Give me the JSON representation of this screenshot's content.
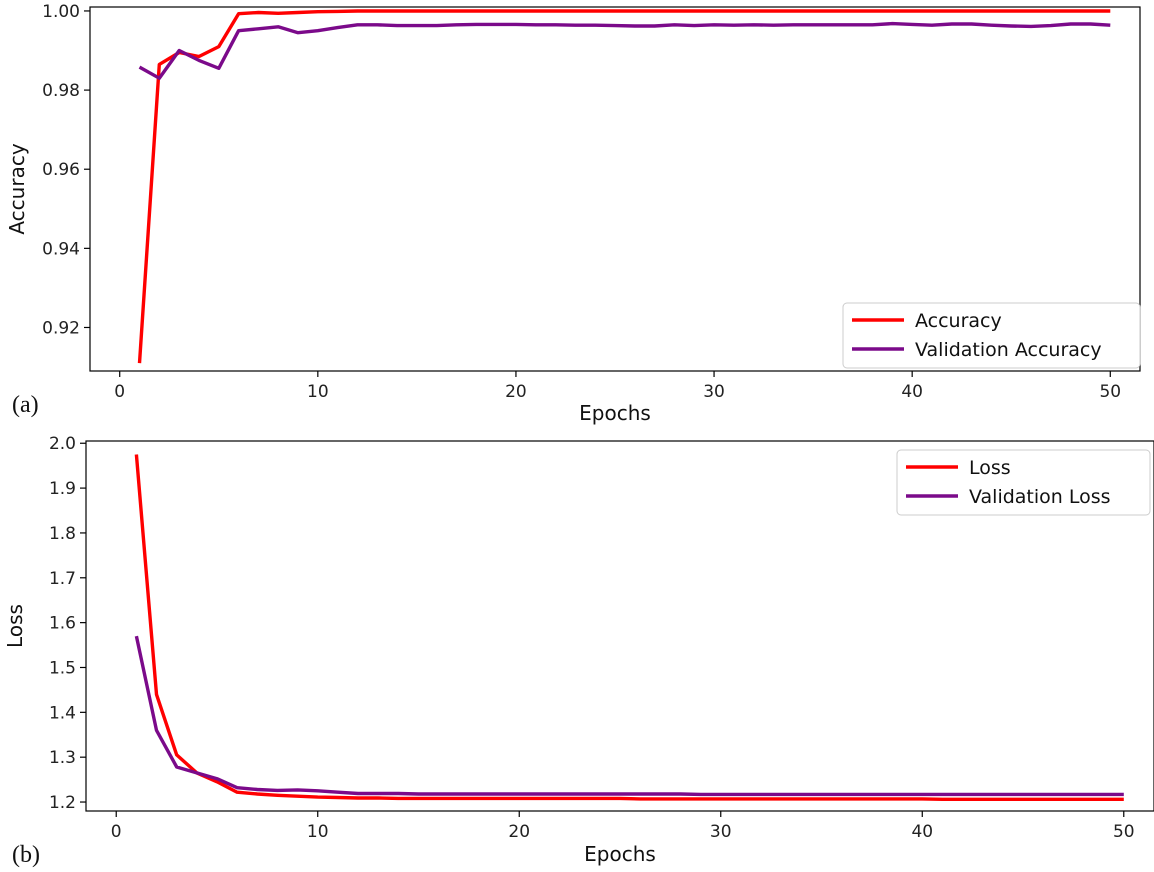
{
  "figure": {
    "panel_labels": [
      "(a)",
      "(b)"
    ]
  },
  "chart_data": [
    {
      "type": "line",
      "xlabel": "Epochs",
      "ylabel": "Accuracy",
      "xlim": [
        -1.5,
        51.5
      ],
      "ylim": [
        0.909,
        1.001
      ],
      "xticks": [
        0,
        10,
        20,
        30,
        40,
        50
      ],
      "yticks": [
        0.92,
        0.94,
        0.96,
        0.98,
        1.0
      ],
      "ytick_labels": [
        "0.92",
        "0.94",
        "0.96",
        "0.98",
        "1.00"
      ],
      "legend_position": "bottom-right",
      "grid": false,
      "x": [
        1,
        2,
        3,
        4,
        5,
        6,
        7,
        8,
        9,
        10,
        11,
        12,
        13,
        14,
        15,
        16,
        17,
        18,
        19,
        20,
        21,
        22,
        23,
        24,
        25,
        26,
        27,
        28,
        29,
        30,
        31,
        32,
        33,
        34,
        35,
        36,
        37,
        38,
        39,
        40,
        41,
        42,
        43,
        44,
        45,
        46,
        47,
        48,
        49,
        50
      ],
      "series": [
        {
          "name": "Accuracy",
          "color": "#ff0000",
          "values": [
            0.911,
            0.9865,
            0.9895,
            0.9885,
            0.991,
            0.9993,
            0.9996,
            0.9994,
            0.9996,
            0.9998,
            0.9999,
            1.0,
            1.0,
            1.0,
            1.0,
            1.0,
            1.0,
            1.0,
            1.0,
            1.0,
            1.0,
            1.0,
            1.0,
            1.0,
            1.0,
            1.0,
            1.0,
            1.0,
            1.0,
            1.0,
            1.0,
            1.0,
            1.0,
            1.0,
            1.0,
            1.0,
            1.0,
            1.0,
            1.0,
            1.0,
            1.0,
            1.0,
            1.0,
            1.0,
            1.0,
            1.0,
            1.0,
            1.0,
            1.0,
            1.0
          ]
        },
        {
          "name": "Validation Accuracy",
          "color": "#7b0a8a",
          "values": [
            0.9858,
            0.983,
            0.99,
            0.9875,
            0.9855,
            0.995,
            0.9955,
            0.996,
            0.9945,
            0.995,
            0.9958,
            0.9965,
            0.9965,
            0.9963,
            0.9963,
            0.9963,
            0.9965,
            0.9966,
            0.9966,
            0.9966,
            0.9965,
            0.9965,
            0.9964,
            0.9964,
            0.9963,
            0.9962,
            0.9962,
            0.9965,
            0.9963,
            0.9965,
            0.9964,
            0.9965,
            0.9964,
            0.9965,
            0.9965,
            0.9965,
            0.9965,
            0.9965,
            0.9968,
            0.9966,
            0.9964,
            0.9967,
            0.9967,
            0.9964,
            0.9962,
            0.9961,
            0.9963,
            0.9967,
            0.9967,
            0.9964
          ]
        }
      ]
    },
    {
      "type": "line",
      "xlabel": "Epochs",
      "ylabel": "Loss",
      "xlim": [
        -1.5,
        51.5
      ],
      "ylim": [
        1.18,
        2.005
      ],
      "xticks": [
        0,
        10,
        20,
        30,
        40,
        50
      ],
      "yticks": [
        1.2,
        1.3,
        1.4,
        1.5,
        1.6,
        1.7,
        1.8,
        1.9,
        2.0
      ],
      "ytick_labels": [
        "1.2",
        "1.3",
        "1.4",
        "1.5",
        "1.6",
        "1.7",
        "1.8",
        "1.9",
        "2.0"
      ],
      "legend_position": "top-right",
      "grid": false,
      "x": [
        1,
        2,
        3,
        4,
        5,
        6,
        7,
        8,
        9,
        10,
        11,
        12,
        13,
        14,
        15,
        16,
        17,
        18,
        19,
        20,
        21,
        22,
        23,
        24,
        25,
        26,
        27,
        28,
        29,
        30,
        31,
        32,
        33,
        34,
        35,
        36,
        37,
        38,
        39,
        40,
        41,
        42,
        43,
        44,
        45,
        46,
        47,
        48,
        49,
        50
      ],
      "series": [
        {
          "name": "Loss",
          "color": "#ff0000",
          "values": [
            1.975,
            1.44,
            1.305,
            1.265,
            1.245,
            1.222,
            1.218,
            1.215,
            1.213,
            1.211,
            1.21,
            1.209,
            1.209,
            1.208,
            1.208,
            1.208,
            1.208,
            1.208,
            1.208,
            1.208,
            1.208,
            1.208,
            1.208,
            1.208,
            1.208,
            1.207,
            1.207,
            1.207,
            1.207,
            1.207,
            1.207,
            1.207,
            1.207,
            1.207,
            1.207,
            1.207,
            1.207,
            1.207,
            1.207,
            1.207,
            1.206,
            1.206,
            1.206,
            1.206,
            1.206,
            1.206,
            1.206,
            1.206,
            1.206,
            1.206
          ]
        },
        {
          "name": "Validation Loss",
          "color": "#7b0a8a",
          "values": [
            1.57,
            1.36,
            1.278,
            1.265,
            1.252,
            1.232,
            1.228,
            1.226,
            1.227,
            1.225,
            1.222,
            1.219,
            1.219,
            1.219,
            1.218,
            1.218,
            1.218,
            1.218,
            1.218,
            1.218,
            1.218,
            1.218,
            1.218,
            1.218,
            1.218,
            1.218,
            1.218,
            1.218,
            1.217,
            1.217,
            1.217,
            1.217,
            1.217,
            1.217,
            1.217,
            1.217,
            1.217,
            1.217,
            1.217,
            1.217,
            1.217,
            1.217,
            1.217,
            1.217,
            1.217,
            1.217,
            1.217,
            1.217,
            1.217,
            1.217
          ]
        }
      ]
    }
  ]
}
